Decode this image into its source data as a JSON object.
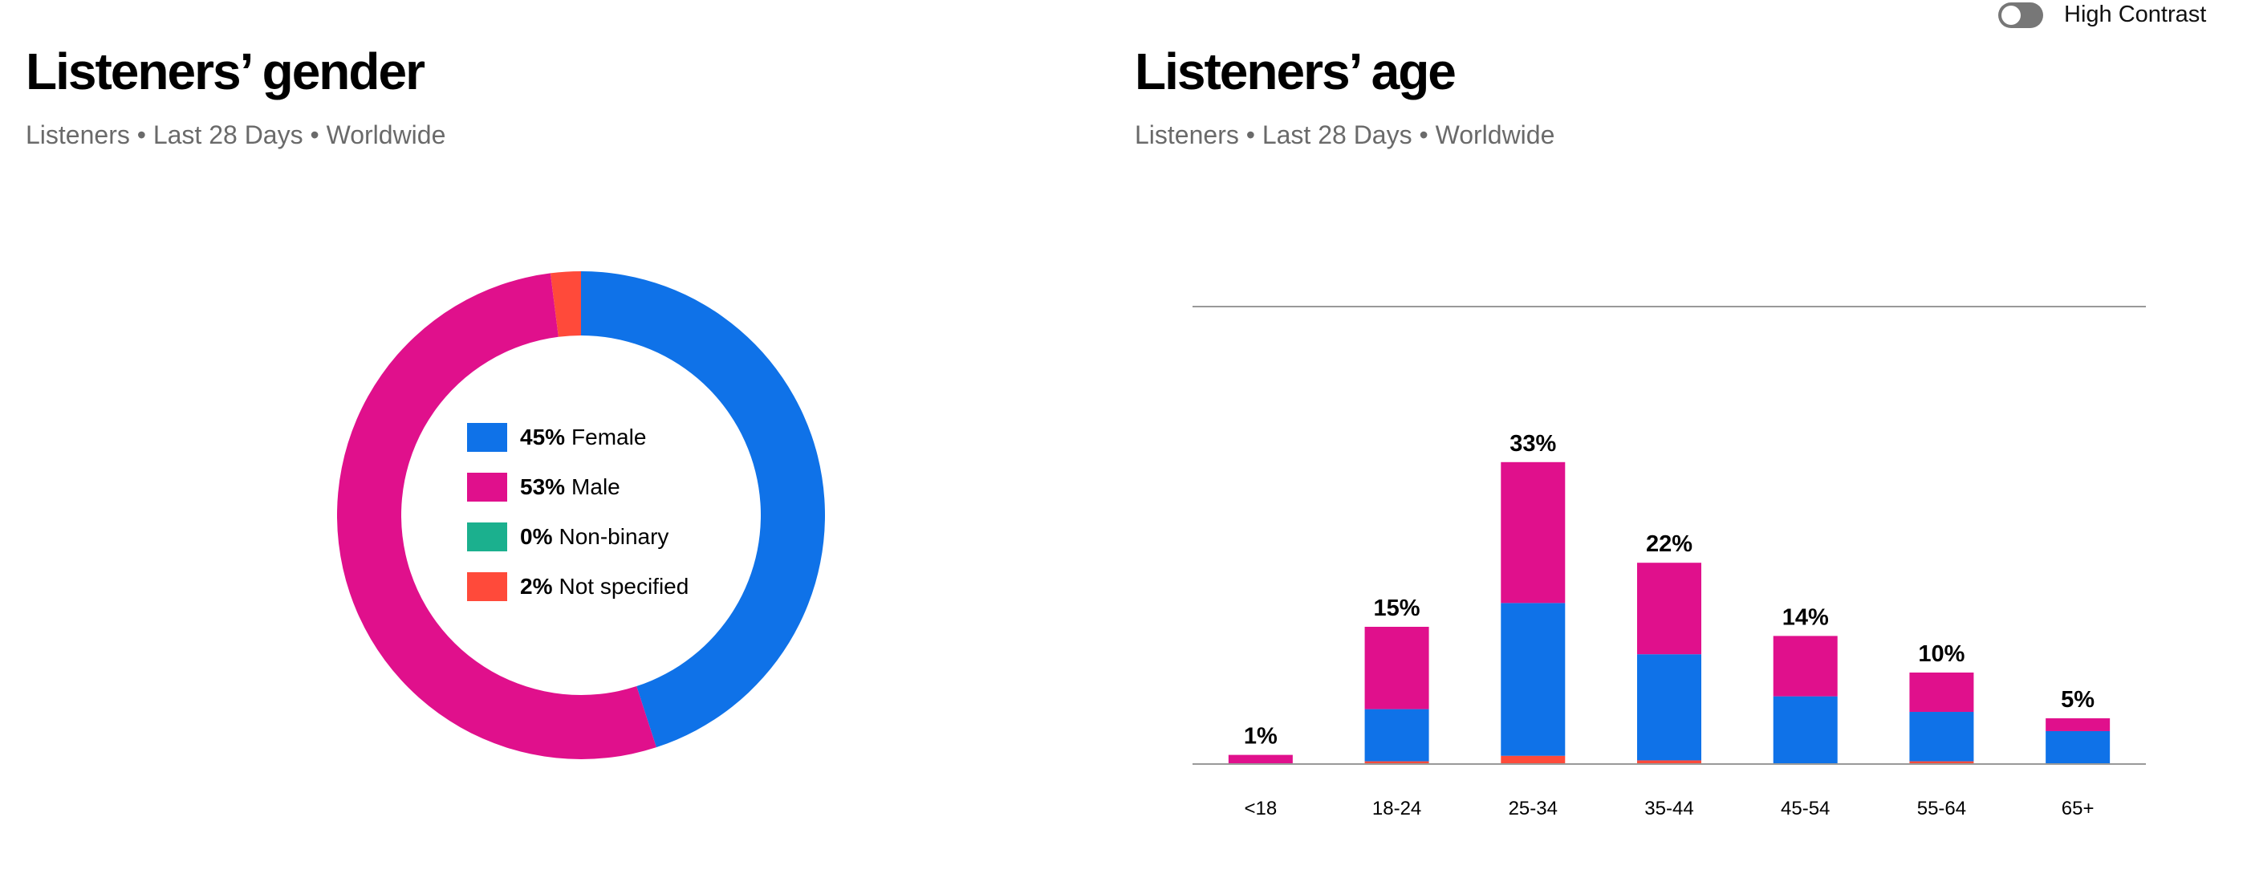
{
  "toggle": {
    "label": "High Contrast",
    "on": false
  },
  "colors": {
    "female": "#0f72e8",
    "male": "#e0108c",
    "nonbinary": "#1bb08e",
    "not_specified": "#ff4a3a",
    "axis": "#999999"
  },
  "chart_data": [
    {
      "type": "pie",
      "title": "Listeners’ gender",
      "subtitle": "Listeners • Last 28 Days • Worldwide",
      "slices": [
        {
          "pct_label": "45%",
          "label": "Female",
          "value": 45,
          "color_key": "female"
        },
        {
          "pct_label": "53%",
          "label": "Male",
          "value": 53,
          "color_key": "male"
        },
        {
          "pct_label": "0%",
          "label": "Non-binary",
          "value": 0,
          "color_key": "nonbinary"
        },
        {
          "pct_label": "2%",
          "label": "Not specified",
          "value": 2,
          "color_key": "not_specified"
        }
      ]
    },
    {
      "type": "bar",
      "stacked": true,
      "title": "Listeners’ age",
      "subtitle": "Listeners • Last 28 Days • Worldwide",
      "categories": [
        "<18",
        "18-24",
        "25-34",
        "35-44",
        "45-54",
        "55-64",
        "65+"
      ],
      "totals": [
        1,
        15,
        33,
        22,
        14,
        10,
        5
      ],
      "total_labels": [
        "1%",
        "15%",
        "33%",
        "22%",
        "14%",
        "10%",
        "5%"
      ],
      "series": [
        {
          "key": "not_specified",
          "color_key": "not_specified",
          "values": [
            0,
            0.3,
            0.9,
            0.4,
            0,
            0.3,
            0
          ]
        },
        {
          "key": "female",
          "color_key": "female",
          "values": [
            0,
            5.7,
            16.7,
            11.6,
            7.4,
            5.4,
            3.6
          ]
        },
        {
          "key": "male",
          "color_key": "male",
          "values": [
            1,
            9,
            15.4,
            10,
            6.6,
            4.3,
            1.4
          ]
        }
      ],
      "ylim": [
        0,
        50
      ],
      "grid": "top line only"
    }
  ]
}
